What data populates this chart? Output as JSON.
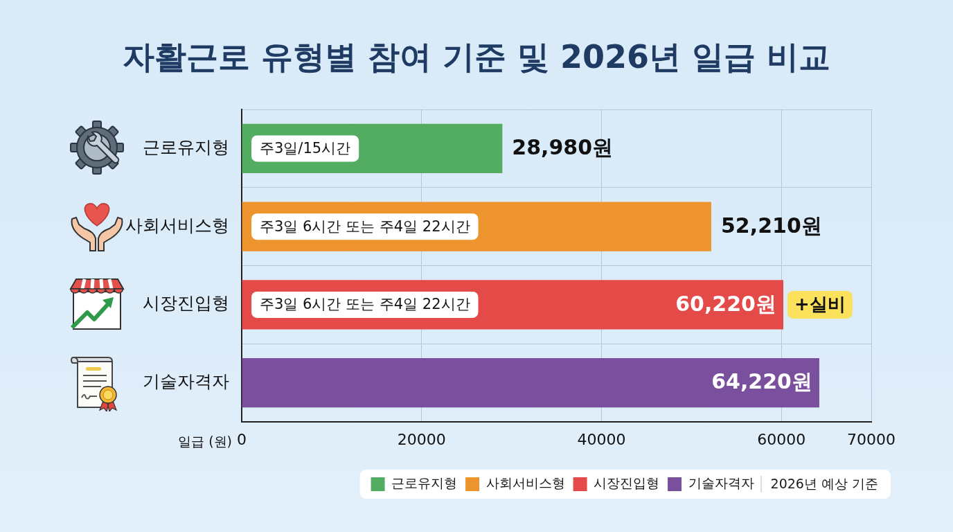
{
  "chart_data": {
    "type": "bar",
    "orientation": "horizontal",
    "title": "자활근로 유형별 참여 기준 및 2026년 일급 비교",
    "xlabel": "일급 (원)",
    "categories": [
      "근로유지형",
      "사회서비스형",
      "시장진입형",
      "기술자격자"
    ],
    "series": [
      {
        "name": "근로유지형",
        "color": "#52ad63",
        "values": [
          28980,
          null,
          null,
          null
        ],
        "value_labels": [
          "28,980원",
          null,
          null,
          null
        ]
      },
      {
        "name": "사회서비스형",
        "color": "#ee942f",
        "values": [
          null,
          52210,
          null,
          null
        ],
        "value_labels": [
          null,
          "52,210원",
          null,
          null
        ]
      },
      {
        "name": "시장진입형",
        "color": "#e44a47",
        "values": [
          null,
          null,
          60220,
          null
        ],
        "value_labels": [
          null,
          null,
          "60,220원",
          null
        ]
      },
      {
        "name": "기술자격자",
        "color": "#7a4f9e",
        "values": [
          null,
          null,
          null,
          64220
        ],
        "value_labels": [
          null,
          null,
          null,
          "64,220원"
        ]
      }
    ],
    "xlim": [
      0,
      70000
    ],
    "xticks": [
      0,
      20000,
      40000,
      60000,
      70000
    ],
    "grid": true,
    "legend": "bottom right",
    "annotations": [
      "주3일/15시간",
      "주3일 6시간 또는 주4일 22시간",
      "주3일 6시간 또는 주4일 22시간",
      {
        "text": "+실비",
        "x": 60220,
        "y": "시장진입형"
      },
      "2026년 예상 기준"
    ]
  }
}
